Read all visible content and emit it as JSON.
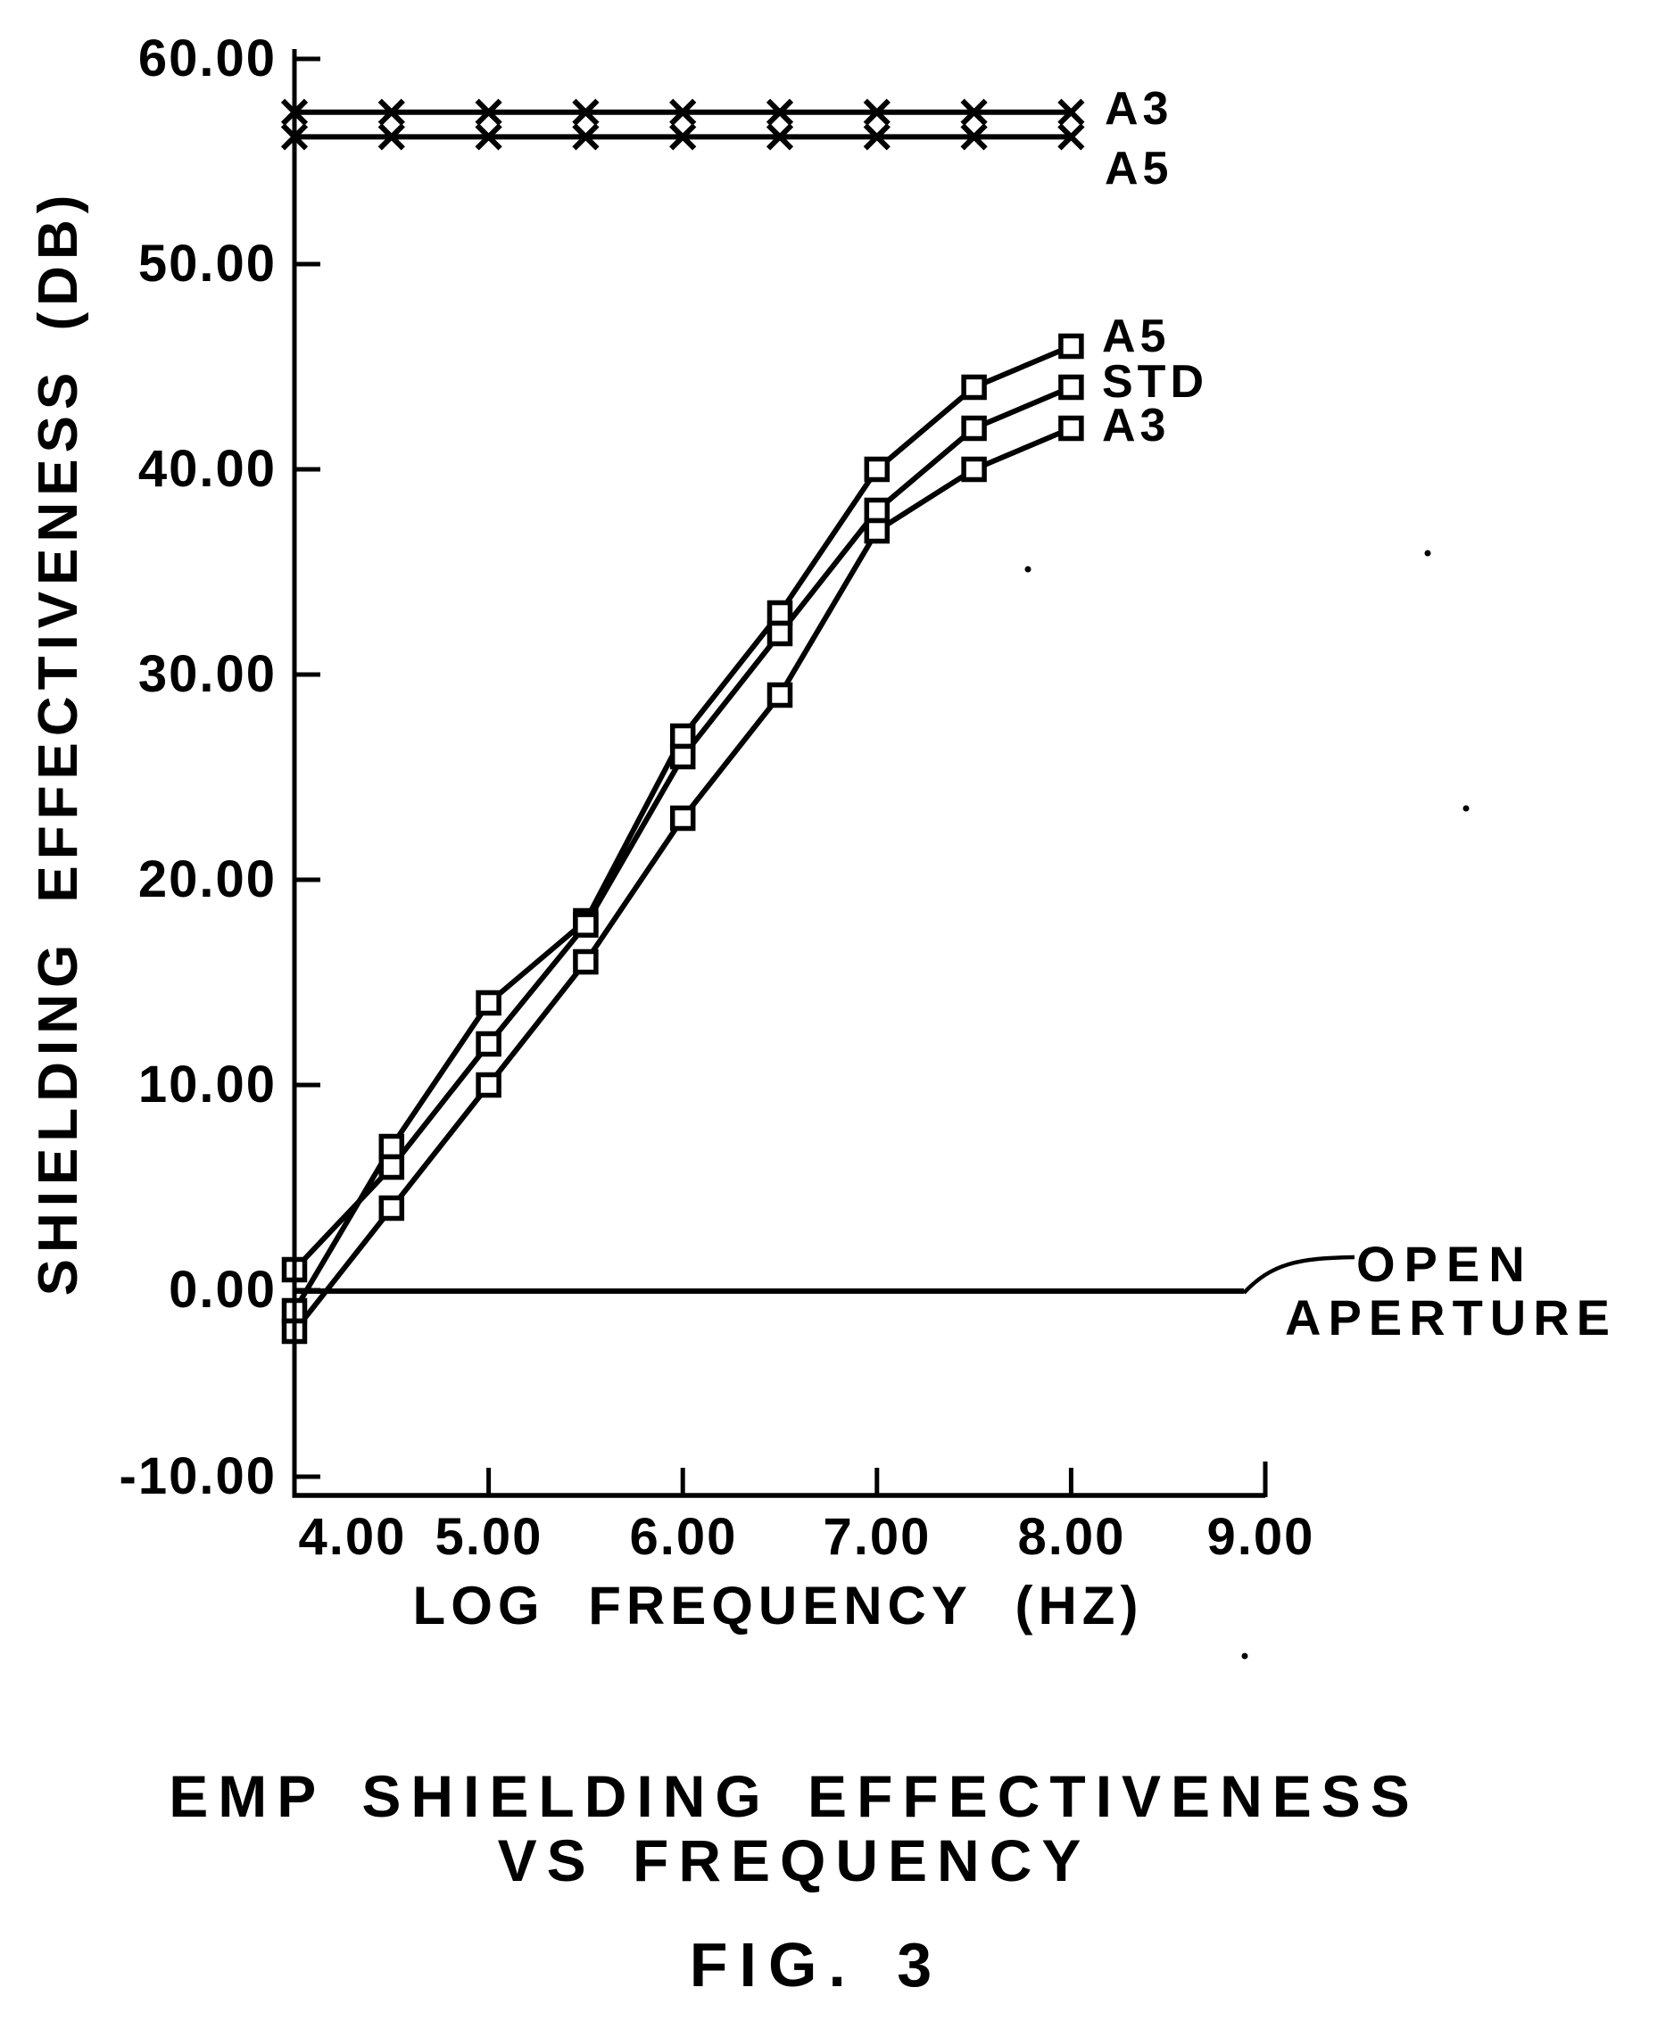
{
  "figure": {
    "title_line1": "EMP SHIELDING EFFECTIVENESS",
    "title_line2": "VS FREQUENCY",
    "fig_label": "FIG. 3"
  },
  "chart_data": {
    "type": "line",
    "title": "EMP SHIELDING EFFECTIVENESS VS FREQUENCY",
    "xlabel": "LOG FREQUENCY (HZ)",
    "ylabel": "SHIELDING EFFECTIVENESS (DB)",
    "xlim": [
      4,
      9
    ],
    "ylim": [
      -10,
      60
    ],
    "grid": false,
    "x_ticks": [
      4,
      5,
      6,
      7,
      8,
      9
    ],
    "x_tick_labels": [
      "4.00",
      "5.00",
      "6.00",
      "7.00",
      "8.00",
      "9.00"
    ],
    "y_ticks": [
      60,
      50,
      40,
      30,
      20,
      10,
      0,
      -10
    ],
    "y_tick_labels": [
      "60.00",
      "50.00",
      "40.00",
      "30.00",
      "20.00",
      "10.00",
      "0.00",
      "-10.00"
    ],
    "x": [
      4,
      4.5,
      5,
      5.5,
      6,
      6.5,
      7,
      7.5,
      8
    ],
    "series": [
      {
        "name": "A3 aperture flat line",
        "label": "A3",
        "marker": "x",
        "values": [
          57.4,
          57.4,
          57.4,
          57.4,
          57.4,
          57.4,
          57.4,
          57.4,
          57.4
        ]
      },
      {
        "name": "A5 aperture flat line",
        "label": "A5",
        "marker": "x",
        "values": [
          56.2,
          56.2,
          56.2,
          56.2,
          56.2,
          56.2,
          56.2,
          56.2,
          56.2
        ]
      },
      {
        "name": "A5 curve",
        "label": "A5",
        "marker": "square",
        "values": [
          -1,
          7,
          14,
          18,
          27,
          33,
          40,
          44,
          46
        ]
      },
      {
        "name": "STD curve",
        "label": "STD",
        "marker": "square",
        "values": [
          1,
          6,
          12,
          17.8,
          26,
          32,
          38,
          42,
          44
        ]
      },
      {
        "name": "A3 curve",
        "label": "A3",
        "marker": "square",
        "values": [
          -2,
          4,
          10,
          16,
          23,
          29,
          37,
          40,
          42
        ]
      }
    ],
    "baseline": {
      "label_line1": "OPEN",
      "label_line2": "APERTURE",
      "value": 0,
      "x_start": 4,
      "x_end": 8.89
    },
    "ink_color": "#000000",
    "background_color": "#ffffff",
    "legend_position": "right-of-line-ends"
  }
}
